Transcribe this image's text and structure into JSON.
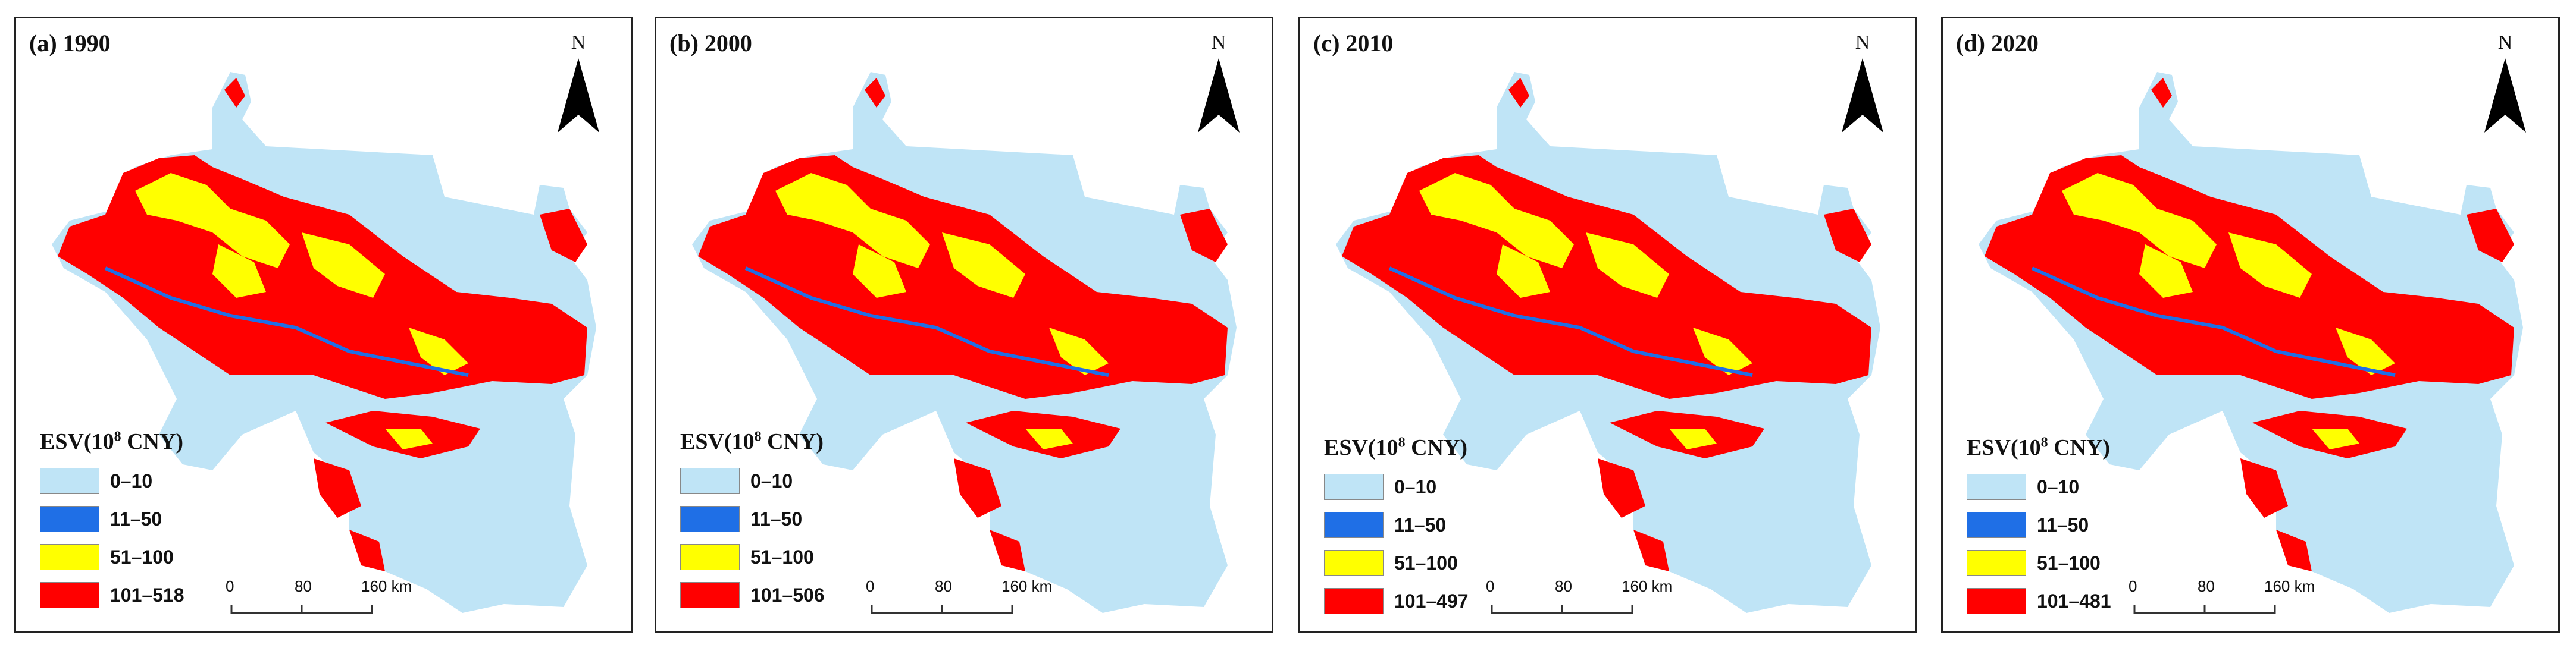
{
  "colors": {
    "background": "#bfe4f6",
    "blue": "#1f6fe6",
    "yellow": "#ffff00",
    "red": "#ff0000"
  },
  "north_label": "N",
  "legend_title_prefix": "ESV(10",
  "legend_title_exp": "8",
  "legend_title_suffix": " CNY)",
  "scale": {
    "labels": [
      "0",
      "80",
      "160 km"
    ]
  },
  "panels": [
    {
      "title": "(a) 1990",
      "legend": [
        "0–10",
        "11–50",
        "51–100",
        "101–518"
      ]
    },
    {
      "title": "(b) 2000",
      "legend": [
        "0–10",
        "11–50",
        "51–100",
        "101–506"
      ]
    },
    {
      "title": "(c) 2010",
      "legend": [
        "0–10",
        "11–50",
        "51–100",
        "101–497"
      ]
    },
    {
      "title": "(d) 2020",
      "legend": [
        "0–10",
        "11–50",
        "51–100",
        "101–481"
      ]
    }
  ]
}
